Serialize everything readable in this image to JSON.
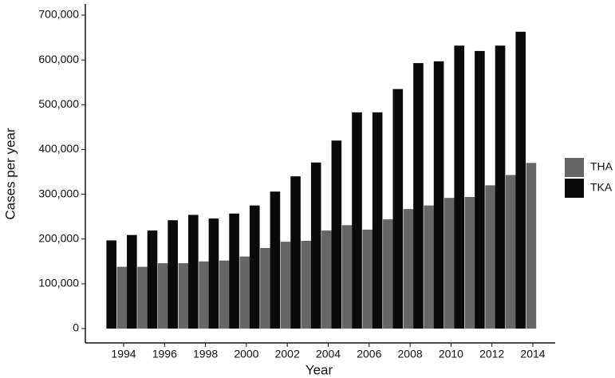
{
  "chart_data": {
    "type": "bar",
    "x_label": "Year",
    "y_label": "Cases per year",
    "categories": [
      "1994",
      null,
      "1996",
      null,
      "1998",
      null,
      "2000",
      null,
      "2002",
      null,
      "2004",
      null,
      "2006",
      null,
      "2008",
      null,
      "2010",
      null,
      "2012",
      null,
      "2014"
    ],
    "series": [
      {
        "name": "THA",
        "color": "#666666",
        "values": [
          138000,
          138000,
          146000,
          146000,
          150000,
          152000,
          161000,
          180000,
          194000,
          196000,
          219000,
          231000,
          221000,
          244000,
          267000,
          275000,
          292000,
          294000,
          320000,
          343000,
          370000
        ]
      },
      {
        "name": "TKA",
        "color": "#0a0a0a",
        "values": [
          197000,
          209000,
          219000,
          242000,
          254000,
          246000,
          257000,
          275000,
          306000,
          340000,
          371000,
          420000,
          483000,
          483000,
          535000,
          593000,
          597000,
          632000,
          620000,
          632000,
          663000
        ]
      }
    ],
    "ylim": [
      -32000,
      725000
    ],
    "yticks": [
      0,
      {
        "value": 100000,
        "label": "100,000"
      },
      {
        "value": 200000,
        "label": "200,000"
      },
      {
        "value": 300000,
        "label": "300,000"
      },
      {
        "value": 400000,
        "label": "400,000"
      },
      {
        "value": 500000,
        "label": "500,000"
      },
      {
        "value": 600000,
        "label": "600,000"
      },
      {
        "value": 700000,
        "label": "700,000"
      }
    ],
    "legend": "right"
  }
}
